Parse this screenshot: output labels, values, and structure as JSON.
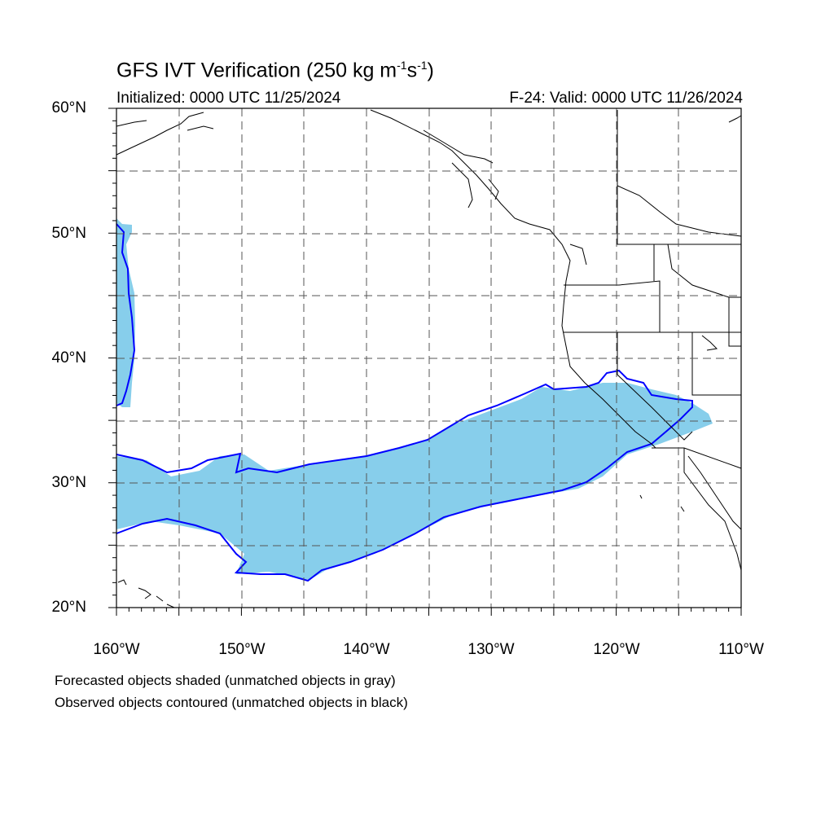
{
  "header": {
    "title_main": "GFS IVT Verification (250 kg m",
    "title_sup1": "-1",
    "title_mid": "s",
    "title_sup2": "-1",
    "title_end": ")",
    "initialized": "Initialized: 0000 UTC 11/25/2024",
    "valid": "F-24: Valid: 0000 UTC 11/26/2024"
  },
  "axes": {
    "y_labels": [
      "60°N",
      "50°N",
      "40°N",
      "30°N",
      "20°N"
    ],
    "x_labels": [
      "160°W",
      "150°W",
      "140°W",
      "130°W",
      "120°W",
      "110°W"
    ],
    "lat_range": [
      20,
      60
    ],
    "lon_range": [
      -160,
      -110
    ]
  },
  "notes": {
    "line1": "Forecasted objects shaded (unmatched objects in gray)",
    "line2": "Observed objects contoured (unmatched objects in black)"
  },
  "colors": {
    "forecast_fill": "#87ceeb",
    "observed_contour": "#0000ff",
    "coastline": "#000000",
    "grid": "#555555"
  }
}
